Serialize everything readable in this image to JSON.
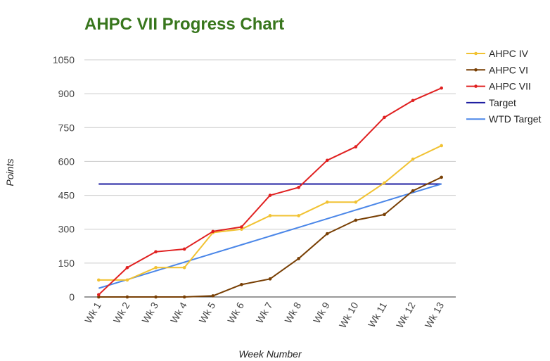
{
  "chart_data": {
    "type": "line",
    "title": "AHPC VII Progress Chart",
    "title_color": "#38761d",
    "xlabel": "Week Number",
    "ylabel": "Points",
    "categories": [
      "Wk 1",
      "Wk 2",
      "Wk 3",
      "Wk 4",
      "Wk 5",
      "Wk 6",
      "Wk 7",
      "Wk 8",
      "Wk 9",
      "Wk 10",
      "Wk 11",
      "Wk 12",
      "Wk 13"
    ],
    "ylim": [
      0,
      1050
    ],
    "yticks": [
      0,
      150,
      300,
      450,
      600,
      750,
      900,
      1050
    ],
    "grid": true,
    "legend_position": "right",
    "series": [
      {
        "name": "AHPC IV",
        "color": "#f1c232",
        "markers": true,
        "values": [
          75,
          75,
          130,
          130,
          285,
          300,
          360,
          360,
          420,
          420,
          505,
          610,
          670
        ]
      },
      {
        "name": "AHPC VI",
        "color": "#783f04",
        "markers": true,
        "values": [
          0,
          0,
          0,
          0,
          5,
          55,
          80,
          170,
          280,
          340,
          365,
          470,
          530
        ]
      },
      {
        "name": "AHPC VII",
        "color": "#e02020",
        "markers": true,
        "values": [
          10,
          130,
          200,
          212,
          290,
          310,
          450,
          485,
          605,
          665,
          795,
          870,
          925
        ]
      },
      {
        "name": "Target",
        "color": "#1c1ca0",
        "markers": false,
        "values": [
          500,
          500,
          500,
          500,
          500,
          500,
          500,
          500,
          500,
          500,
          500,
          500,
          500
        ]
      },
      {
        "name": "WTD Target",
        "color": "#4a86e8",
        "markers": false,
        "values": [
          38.5,
          77,
          115.5,
          154,
          192.5,
          231,
          269.5,
          308,
          346.5,
          385,
          423.5,
          462,
          500.5
        ]
      }
    ]
  }
}
